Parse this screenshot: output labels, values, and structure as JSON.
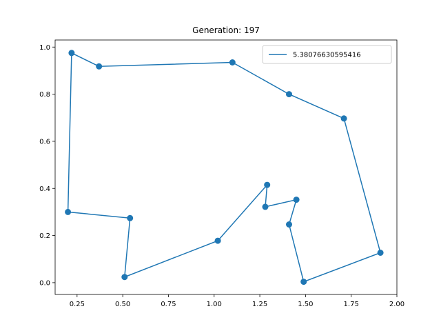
{
  "chart_data": {
    "type": "line",
    "title": "Generation: 197",
    "xlabel": "",
    "ylabel": "",
    "xlim": [
      0.13,
      2.0
    ],
    "ylim": [
      -0.05,
      1.03
    ],
    "xticks": [
      0.25,
      0.5,
      0.75,
      1.0,
      1.25,
      1.5,
      1.75,
      2.0
    ],
    "xtick_labels": [
      "0.25",
      "0.50",
      "0.75",
      "1.00",
      "1.25",
      "1.50",
      "1.75",
      "2.00"
    ],
    "yticks": [
      0.0,
      0.2,
      0.4,
      0.6,
      0.8,
      1.0
    ],
    "ytick_labels": [
      "0.0",
      "0.2",
      "0.4",
      "0.6",
      "0.8",
      "1.0"
    ],
    "grid": false,
    "legend_position": "top-right",
    "color": "#1f77b4",
    "series": [
      {
        "name": "5.38076630595416",
        "points": [
          [
            0.22,
            0.975
          ],
          [
            0.37,
            0.918
          ],
          [
            1.1,
            0.935
          ],
          [
            1.41,
            0.8
          ],
          [
            1.71,
            0.697
          ],
          [
            1.91,
            0.127
          ],
          [
            1.49,
            0.004
          ],
          [
            1.41,
            0.247
          ],
          [
            1.45,
            0.352
          ],
          [
            1.28,
            0.322
          ],
          [
            1.29,
            0.415
          ],
          [
            1.02,
            0.178
          ],
          [
            0.51,
            0.024
          ],
          [
            0.54,
            0.274
          ],
          [
            0.2,
            0.3
          ]
        ]
      }
    ]
  }
}
